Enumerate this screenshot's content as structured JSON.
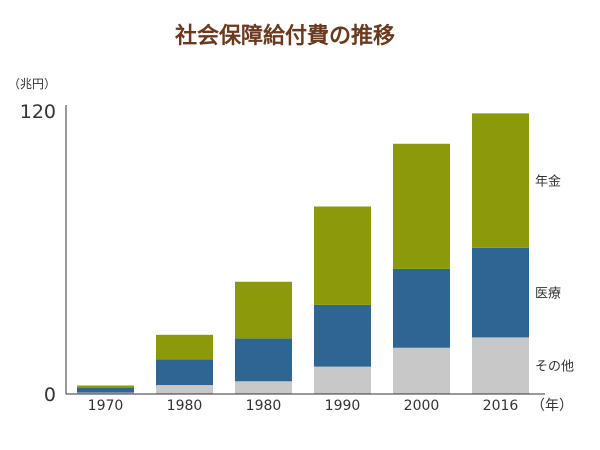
{
  "chart_data": {
    "type": "bar",
    "stacked": true,
    "title": "社会保障給付費の推移",
    "ylabel": "（兆円）",
    "xlabel": "（年）",
    "categories": [
      "1970",
      "1980",
      "1980",
      "1990",
      "2000",
      "2016"
    ],
    "ylim": [
      0,
      120
    ],
    "yticks": [
      0,
      120
    ],
    "grid": false,
    "legend_position": "right",
    "series": [
      {
        "name": "その他",
        "color": "#c8c8c8",
        "values": [
          0.6,
          3.8,
          5.4,
          11.6,
          19.6,
          24.0
        ]
      },
      {
        "name": "医療",
        "color": "#2f6593",
        "values": [
          2.1,
          10.8,
          18.1,
          26.2,
          33.5,
          38.0
        ]
      },
      {
        "name": "年金",
        "color": "#8a9a0b",
        "values": [
          0.9,
          10.5,
          24.1,
          41.7,
          53.0,
          57.0
        ]
      }
    ]
  }
}
